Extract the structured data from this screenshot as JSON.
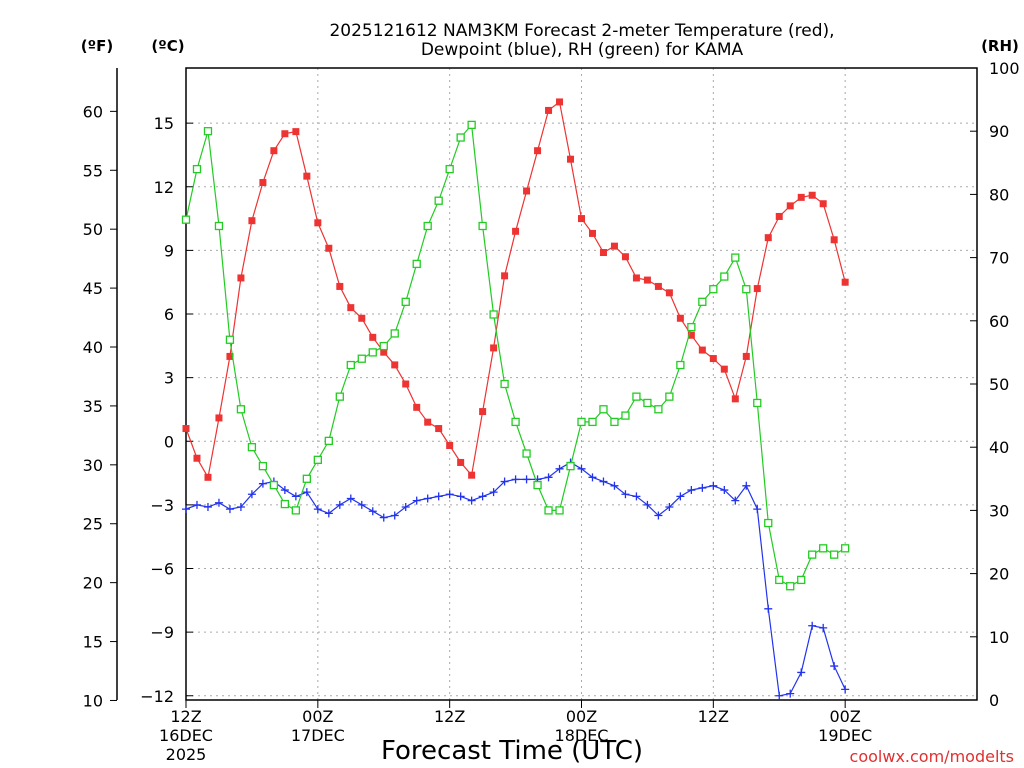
{
  "chart_data": {
    "type": "line",
    "title_line1": "2025121612 NAM3KM Forecast 2-meter Temperature (red),",
    "title_line2": "Dewpoint (blue), RH (green) for KAMA",
    "xlabel": "Forecast Time (UTC)",
    "credit": "coolwx.com/modelts",
    "units": {
      "f": "(ºF)",
      "c": "(ºC)",
      "rh": "(RH)"
    },
    "xlim": [
      0,
      72
    ],
    "ylim_c": [
      -12.2,
      17.6
    ],
    "ylim_rh": [
      0,
      100
    ],
    "fahrenheit_ticks": [
      10,
      15,
      20,
      25,
      30,
      35,
      40,
      45,
      50,
      55,
      60
    ],
    "celsius_ticks": [
      -12,
      -9,
      -6,
      -3,
      0,
      3,
      6,
      9,
      12,
      15
    ],
    "rh_ticks": [
      0,
      10,
      20,
      30,
      40,
      50,
      60,
      70,
      80,
      90,
      100
    ],
    "x_ticks": [
      {
        "x": 0,
        "label": "12Z",
        "sub1": "16DEC",
        "sub2": "2025"
      },
      {
        "x": 12,
        "label": "00Z",
        "sub1": "17DEC",
        "sub2": ""
      },
      {
        "x": 24,
        "label": "12Z",
        "sub1": "",
        "sub2": ""
      },
      {
        "x": 36,
        "label": "00Z",
        "sub1": "18DEC",
        "sub2": ""
      },
      {
        "x": 48,
        "label": "12Z",
        "sub1": "",
        "sub2": ""
      },
      {
        "x": 60,
        "label": "00Z",
        "sub1": "19DEC",
        "sub2": ""
      }
    ],
    "series": [
      {
        "name": "Temperature",
        "unit": "°C",
        "color": "#ee3333",
        "marker": "filled-square",
        "x": [
          0,
          1,
          2,
          3,
          4,
          5,
          6,
          7,
          8,
          9,
          10,
          11,
          12,
          13,
          14,
          15,
          16,
          17,
          18,
          19,
          20,
          21,
          22,
          23,
          24,
          25,
          26,
          27,
          28,
          29,
          30,
          31,
          32,
          33,
          34,
          35,
          36,
          37,
          38,
          39,
          40,
          41,
          42,
          43,
          44,
          45,
          46,
          47,
          48,
          49,
          50,
          51,
          52,
          53,
          54,
          55,
          56,
          57,
          58,
          59,
          60
        ],
        "values": [
          0.6,
          -0.8,
          -1.7,
          1.1,
          4.0,
          7.7,
          10.4,
          12.2,
          13.7,
          14.5,
          14.6,
          12.5,
          10.3,
          9.1,
          7.3,
          6.3,
          5.8,
          4.9,
          4.2,
          3.6,
          2.7,
          1.6,
          0.9,
          0.6,
          -0.2,
          -1.0,
          -1.6,
          1.4,
          4.4,
          7.8,
          9.9,
          11.8,
          13.7,
          15.6,
          16.0,
          13.3,
          10.5,
          9.8,
          8.9,
          9.2,
          8.7,
          7.7,
          7.6,
          7.3,
          7.0,
          5.8,
          5.0,
          4.3,
          3.9,
          3.4,
          2.0,
          4.0,
          7.2,
          9.6,
          10.6,
          11.1,
          11.5,
          11.6,
          11.2,
          9.5,
          7.5
        ]
      },
      {
        "name": "Dewpoint",
        "unit": "°C",
        "color": "#2233ee",
        "marker": "plus",
        "x": [
          0,
          1,
          2,
          3,
          4,
          5,
          6,
          7,
          8,
          9,
          10,
          11,
          12,
          13,
          14,
          15,
          16,
          17,
          18,
          19,
          20,
          21,
          22,
          23,
          24,
          25,
          26,
          27,
          28,
          29,
          30,
          31,
          32,
          33,
          34,
          35,
          36,
          37,
          38,
          39,
          40,
          41,
          42,
          43,
          44,
          45,
          46,
          47,
          48,
          49,
          50,
          51,
          52,
          53,
          54,
          55,
          56,
          57,
          58,
          59,
          60
        ],
        "values": [
          -3.2,
          -3.0,
          -3.1,
          -2.9,
          -3.2,
          -3.1,
          -2.5,
          -2.0,
          -1.9,
          -2.3,
          -2.6,
          -2.4,
          -3.2,
          -3.4,
          -3.0,
          -2.7,
          -3.0,
          -3.3,
          -3.6,
          -3.5,
          -3.1,
          -2.8,
          -2.7,
          -2.6,
          -2.5,
          -2.6,
          -2.8,
          -2.6,
          -2.4,
          -1.9,
          -1.8,
          -1.8,
          -1.8,
          -1.7,
          -1.3,
          -1.0,
          -1.3,
          -1.7,
          -1.9,
          -2.1,
          -2.5,
          -2.6,
          -3.0,
          -3.5,
          -3.1,
          -2.6,
          -2.3,
          -2.2,
          -2.1,
          -2.3,
          -2.8,
          -2.1,
          -3.2,
          -7.9,
          -12.0,
          -11.9,
          -10.9,
          -8.7,
          -8.8,
          -10.6,
          -11.7
        ]
      },
      {
        "name": "Relative Humidity",
        "unit": "%",
        "color": "#22cc22",
        "marker": "open-square",
        "x": [
          0,
          1,
          2,
          3,
          4,
          5,
          6,
          7,
          8,
          9,
          10,
          11,
          12,
          13,
          14,
          15,
          16,
          17,
          18,
          19,
          20,
          21,
          22,
          23,
          24,
          25,
          26,
          27,
          28,
          29,
          30,
          31,
          32,
          33,
          34,
          35,
          36,
          37,
          38,
          39,
          40,
          41,
          42,
          43,
          44,
          45,
          46,
          47,
          48,
          49,
          50,
          51,
          52,
          53,
          54,
          55,
          56,
          57,
          58,
          59,
          60
        ],
        "values": [
          76,
          84,
          90,
          75,
          57,
          46,
          40,
          37,
          34,
          31,
          30,
          35,
          38,
          41,
          48,
          53,
          54,
          55,
          56,
          58,
          63,
          69,
          75,
          79,
          84,
          89,
          91,
          75,
          61,
          50,
          44,
          39,
          34,
          30,
          30,
          37,
          44,
          44,
          46,
          44,
          45,
          48,
          47,
          46,
          48,
          53,
          59,
          63,
          65,
          67,
          70,
          65,
          47,
          28,
          19,
          18,
          19,
          23,
          24,
          23,
          24
        ]
      }
    ]
  }
}
